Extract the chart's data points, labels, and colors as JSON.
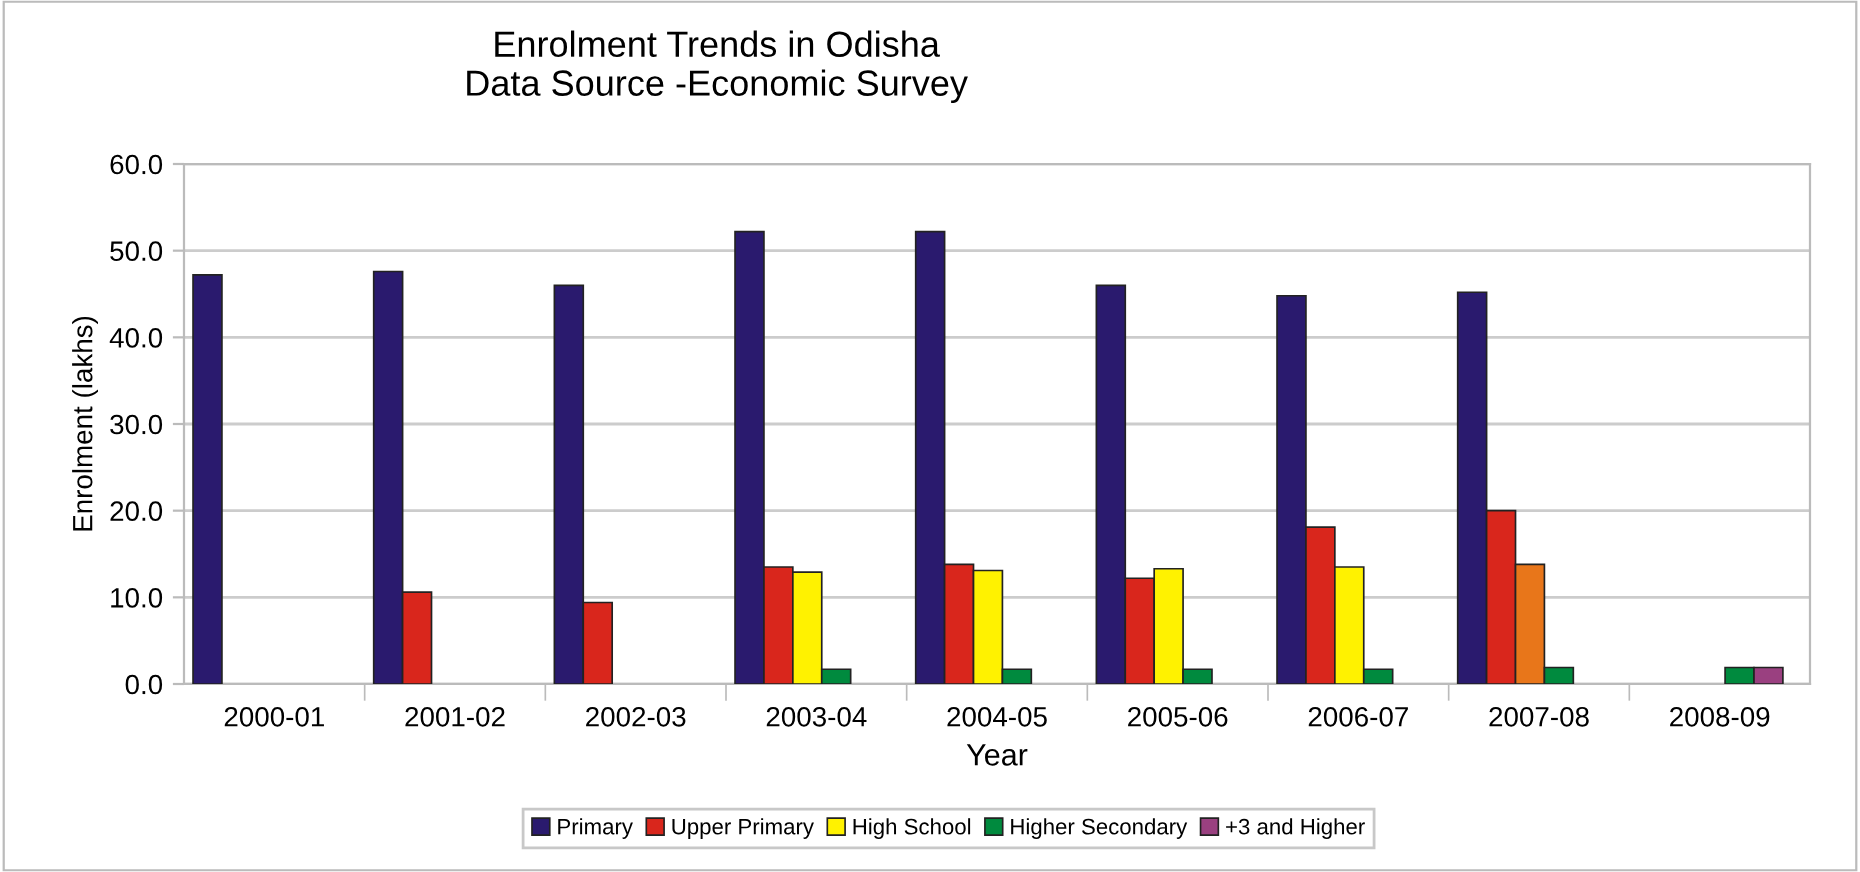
{
  "chart_data": {
    "type": "bar",
    "title": "Enrolment Trends in Odisha\nData Source -Economic Survey",
    "xlabel": "Year",
    "ylabel": "Enrolment (lakhs)",
    "categories": [
      "2000-01",
      "2001-02",
      "2002-03",
      "2003-04",
      "2004-05",
      "2005-06",
      "2006-07",
      "2007-08",
      "2008-09"
    ],
    "series": [
      {
        "name": "Primary",
        "color": "#2a1a6e",
        "values": [
          47.2,
          47.6,
          46.0,
          52.2,
          52.2,
          46.0,
          44.8,
          45.2,
          null
        ]
      },
      {
        "name": "Upper Primary",
        "color": "#d9261c",
        "values": [
          null,
          10.6,
          9.4,
          13.5,
          13.8,
          12.2,
          18.1,
          20.0,
          null
        ]
      },
      {
        "name": "High School",
        "color": "#fff200",
        "colors": [
          "#fff200",
          "#fff200",
          "#fff200",
          "#fff200",
          "#fff200",
          "#fff200",
          "#fff200",
          "#e8761a",
          "#fff200"
        ],
        "values": [
          null,
          null,
          null,
          12.9,
          13.1,
          13.3,
          13.5,
          13.8,
          null
        ]
      },
      {
        "name": "Higher Secondary",
        "color": "#008a3e",
        "values": [
          null,
          null,
          null,
          1.7,
          1.7,
          1.7,
          1.7,
          1.9,
          1.9
        ]
      },
      {
        "name": "+3 and Higher",
        "color": "#9a4080",
        "values": [
          null,
          null,
          null,
          null,
          null,
          null,
          null,
          null,
          1.9
        ]
      }
    ],
    "ylim": [
      0,
      60
    ],
    "yticks": [
      {
        "value": 0,
        "label": "0.0"
      },
      {
        "value": 10,
        "label": "10.0"
      },
      {
        "value": 20,
        "label": "20.0"
      },
      {
        "value": 30,
        "label": "30.0"
      },
      {
        "value": 40,
        "label": "40.0"
      },
      {
        "value": 50,
        "label": "50.0"
      },
      {
        "value": 60,
        "label": "60.0"
      }
    ],
    "grid": "y",
    "legend": "bottom"
  }
}
